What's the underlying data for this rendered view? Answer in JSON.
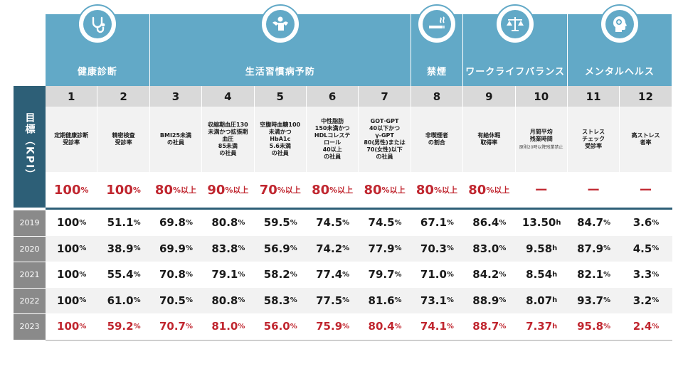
{
  "categories": [
    {
      "title": "健康診断",
      "icon": "stethoscope-icon",
      "span": 2
    },
    {
      "title": "生活習慣病予防",
      "icon": "muscle-person-icon",
      "span": 5
    },
    {
      "title": "禁煙",
      "icon": "cigarette-icon",
      "span": 1
    },
    {
      "title": "ワークライフバランス",
      "icon": "balance-scale-icon",
      "span": 2
    },
    {
      "title": "メンタルヘルス",
      "icon": "head-mind-icon",
      "span": 2
    }
  ],
  "kpi_label": "目標（KPI）",
  "columns": [
    {
      "no": "1",
      "desc": [
        "定期健康診断",
        "受診率"
      ],
      "sub": "",
      "target": "100",
      "target_unit": "%"
    },
    {
      "no": "2",
      "desc": [
        "精密検査",
        "受診率"
      ],
      "sub": "",
      "target": "100",
      "target_unit": "%"
    },
    {
      "no": "3",
      "desc": [
        "BMI25未満",
        "の社員"
      ],
      "sub": "",
      "target": "80",
      "target_unit": "%以上"
    },
    {
      "no": "4",
      "desc": [
        "収縮期血圧130",
        "未満かつ拡張期",
        "血圧",
        "85未満",
        "の社員"
      ],
      "sub": "",
      "target": "90",
      "target_unit": "%以上"
    },
    {
      "no": "5",
      "desc": [
        "空腹時血糖100",
        "未満かつ",
        "HbA1c",
        "5.6未満",
        "の社員"
      ],
      "sub": "",
      "target": "70",
      "target_unit": "%以上"
    },
    {
      "no": "6",
      "desc": [
        "中性脂肪",
        "150未満かつ",
        "HDLコレステ",
        "ロール",
        "40以上",
        "の社員"
      ],
      "sub": "",
      "target": "80",
      "target_unit": "%以上"
    },
    {
      "no": "7",
      "desc": [
        "GOT·GPT",
        "40以下かつ",
        "γ-GPT",
        "80(男性)または",
        "70(女性)以下",
        "の社員"
      ],
      "sub": "",
      "target": "80",
      "target_unit": "%以上"
    },
    {
      "no": "8",
      "desc": [
        "非喫煙者",
        "の割合"
      ],
      "sub": "",
      "target": "80",
      "target_unit": "%以上"
    },
    {
      "no": "9",
      "desc": [
        "有給休暇",
        "取得率"
      ],
      "sub": "",
      "target": "80",
      "target_unit": "%以上"
    },
    {
      "no": "10",
      "desc": [
        "月間平均",
        "残業時間"
      ],
      "sub": "原則20時以降残業禁止",
      "target": "ー",
      "target_unit": ""
    },
    {
      "no": "11",
      "desc": [
        "ストレス",
        "チェック",
        "受診率"
      ],
      "sub": "",
      "target": "ー",
      "target_unit": ""
    },
    {
      "no": "12",
      "desc": [
        "高ストレス",
        "者率"
      ],
      "sub": "",
      "target": "ー",
      "target_unit": ""
    }
  ],
  "rows": [
    {
      "year": "2019",
      "values": [
        [
          "100",
          "%"
        ],
        [
          "51.1",
          "%"
        ],
        [
          "69.8",
          "%"
        ],
        [
          "80.8",
          "%"
        ],
        [
          "59.5",
          "%"
        ],
        [
          "74.5",
          "%"
        ],
        [
          "74.5",
          "%"
        ],
        [
          "67.1",
          "%"
        ],
        [
          "86.4",
          "%"
        ],
        [
          "13.50",
          "h"
        ],
        [
          "84.7",
          "%"
        ],
        [
          "3.6",
          "%"
        ]
      ]
    },
    {
      "year": "2020",
      "values": [
        [
          "100",
          "%"
        ],
        [
          "38.9",
          "%"
        ],
        [
          "69.9",
          "%"
        ],
        [
          "83.8",
          "%"
        ],
        [
          "56.9",
          "%"
        ],
        [
          "74.2",
          "%"
        ],
        [
          "77.9",
          "%"
        ],
        [
          "70.3",
          "%"
        ],
        [
          "83.0",
          "%"
        ],
        [
          "9.58",
          "h"
        ],
        [
          "87.9",
          "%"
        ],
        [
          "4.5",
          "%"
        ]
      ]
    },
    {
      "year": "2021",
      "values": [
        [
          "100",
          "%"
        ],
        [
          "55.4",
          "%"
        ],
        [
          "70.8",
          "%"
        ],
        [
          "79.1",
          "%"
        ],
        [
          "58.2",
          "%"
        ],
        [
          "77.4",
          "%"
        ],
        [
          "79.7",
          "%"
        ],
        [
          "71.0",
          "%"
        ],
        [
          "84.2",
          "%"
        ],
        [
          "8.54",
          "h"
        ],
        [
          "82.1",
          "%"
        ],
        [
          "3.3",
          "%"
        ]
      ]
    },
    {
      "year": "2022",
      "values": [
        [
          "100",
          "%"
        ],
        [
          "61.0",
          "%"
        ],
        [
          "70.5",
          "%"
        ],
        [
          "80.8",
          "%"
        ],
        [
          "58.3",
          "%"
        ],
        [
          "77.5",
          "%"
        ],
        [
          "81.6",
          "%"
        ],
        [
          "73.1",
          "%"
        ],
        [
          "88.9",
          "%"
        ],
        [
          "8.07",
          "h"
        ],
        [
          "93.7",
          "%"
        ],
        [
          "3.2",
          "%"
        ]
      ]
    },
    {
      "year": "2023",
      "values": [
        [
          "100",
          "%"
        ],
        [
          "59.2",
          "%"
        ],
        [
          "70.7",
          "%"
        ],
        [
          "81.0",
          "%"
        ],
        [
          "56.0",
          "%"
        ],
        [
          "75.9",
          "%"
        ],
        [
          "80.4",
          "%"
        ],
        [
          "74.1",
          "%"
        ],
        [
          "88.7",
          "%"
        ],
        [
          "7.37",
          "h"
        ],
        [
          "95.8",
          "%"
        ],
        [
          "2.4",
          "%"
        ]
      ]
    }
  ],
  "colors": {
    "header_blue": "#62a9c7",
    "kpi_navy": "#2d5f77",
    "accent_red": "#c0262f",
    "year_gray": "#8a8a8a"
  }
}
